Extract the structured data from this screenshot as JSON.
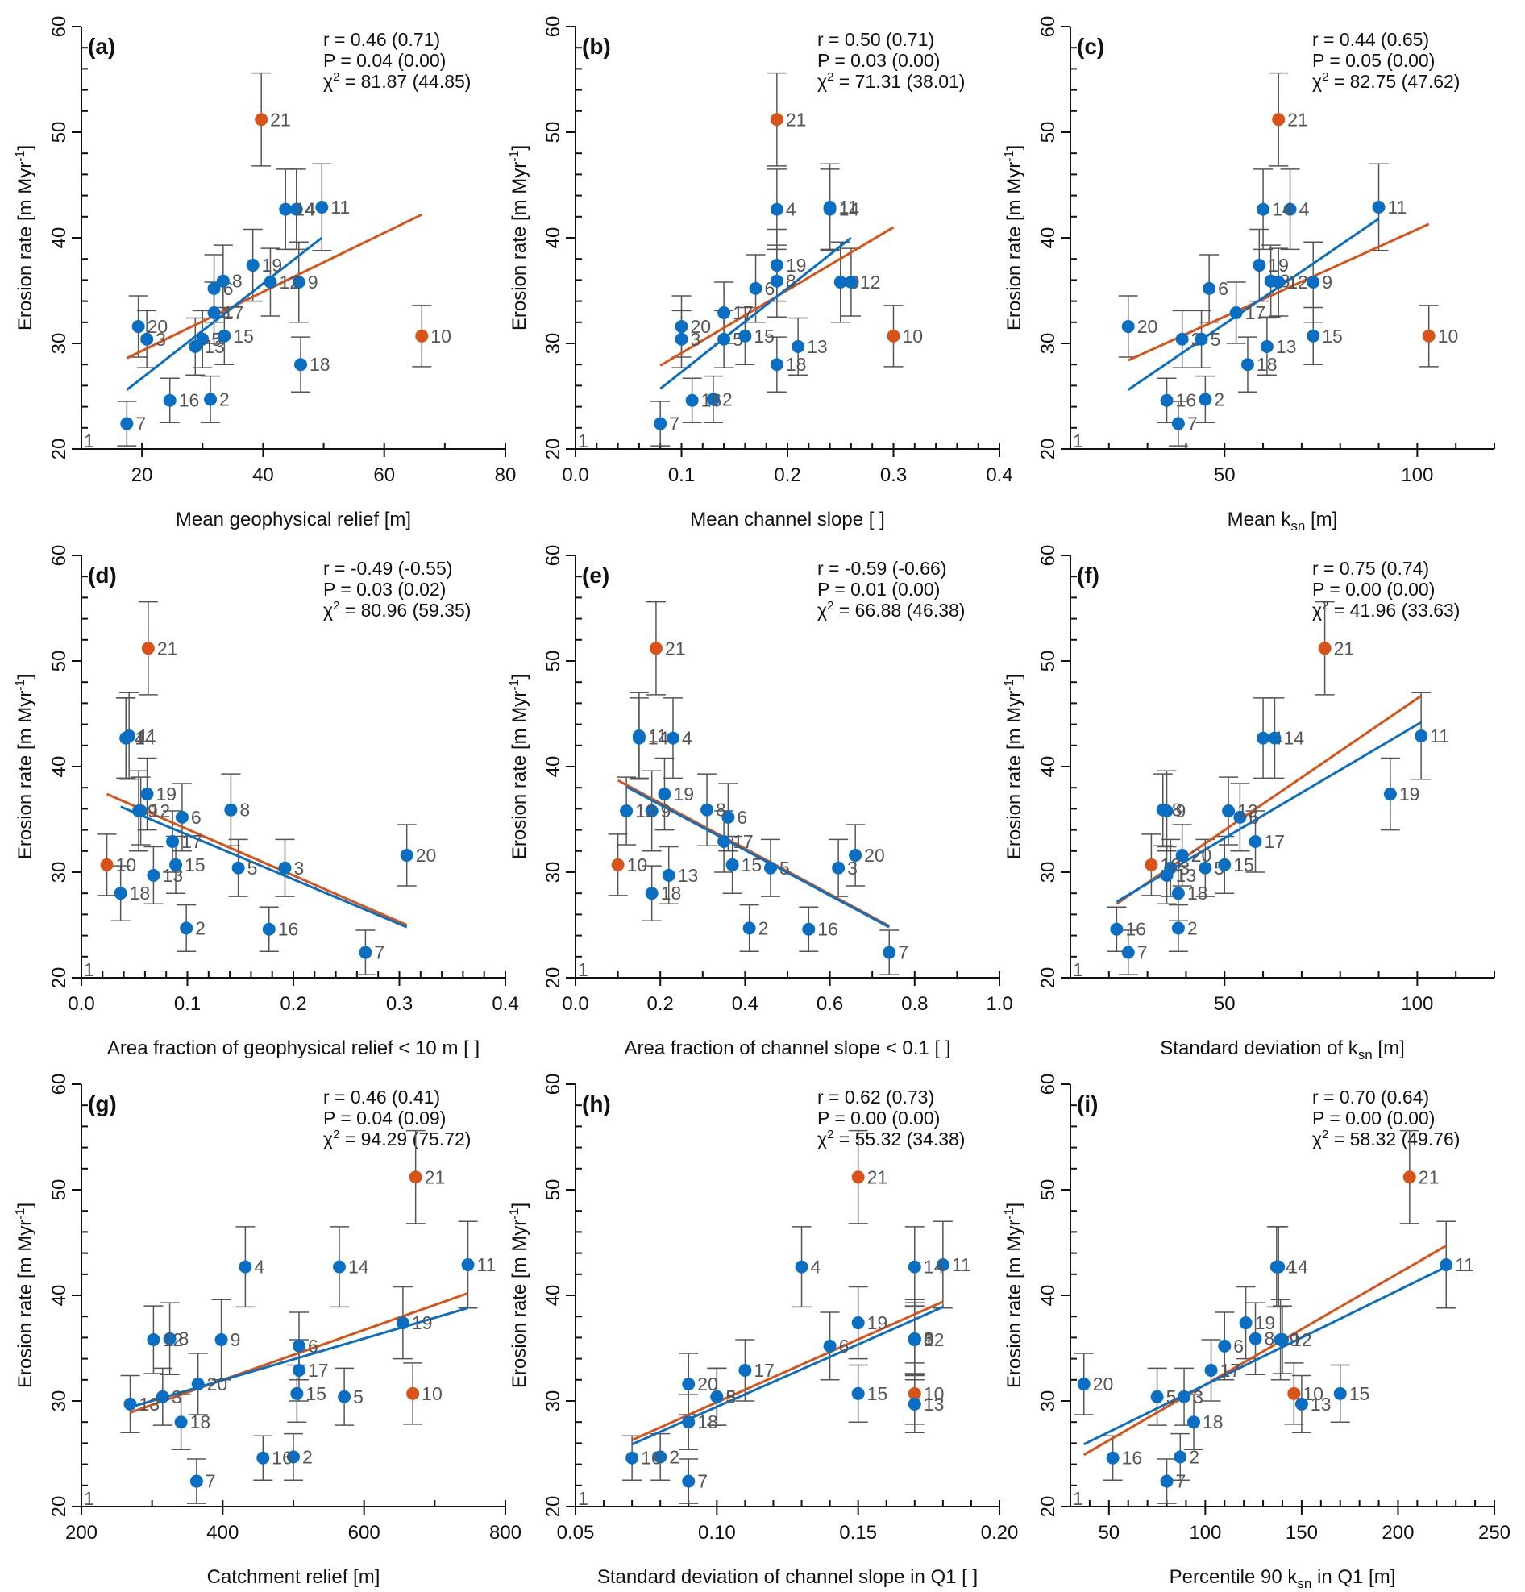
{
  "chart_data": {
    "type": "scatter",
    "ylabel": "Erosion rate [m Myr-1]",
    "ylim": [
      20,
      60
    ],
    "yticks": [
      20,
      30,
      40,
      50,
      60
    ],
    "colors": {
      "points": "#0a6fc2",
      "outliers": "#d95319",
      "fit_all": "#d95319",
      "fit_excl": "#0a6fc2",
      "errorbar": "#555555",
      "axis": "#111111"
    },
    "samples": {
      "ids": [
        "2",
        "3",
        "4",
        "5",
        "6",
        "7",
        "8",
        "9",
        "10",
        "11",
        "12",
        "13",
        "14",
        "15",
        "16",
        "17",
        "18",
        "19",
        "20",
        "21"
      ],
      "erosion_rate": [
        24.7,
        30.4,
        42.7,
        30.4,
        35.2,
        22.4,
        35.9,
        35.8,
        30.7,
        42.9,
        35.8,
        29.7,
        42.7,
        30.7,
        24.6,
        32.9,
        28.0,
        37.4,
        31.6,
        51.2
      ],
      "error": [
        2.2,
        2.7,
        3.8,
        2.7,
        3.2,
        2.1,
        3.4,
        3.8,
        2.9,
        4.1,
        3.2,
        2.7,
        3.8,
        2.7,
        2.1,
        2.9,
        2.6,
        3.4,
        2.9,
        4.4
      ],
      "outlier": [
        false,
        false,
        false,
        false,
        false,
        false,
        false,
        false,
        true,
        false,
        false,
        false,
        false,
        false,
        false,
        false,
        false,
        false,
        false,
        true
      ]
    },
    "offchart_marker": "1",
    "panels": [
      {
        "id": "a",
        "label": "(a)",
        "xlabel": "Mean geophysical relief [m]",
        "xlabel_sub": "",
        "xlim": [
          10,
          80
        ],
        "xticks": [
          20,
          40,
          60,
          80
        ],
        "xtick_labels": [
          "20",
          "40",
          "60",
          "80"
        ],
        "xminor": 10,
        "stats": {
          "r": "r = 0.46 (0.71)",
          "p": "P = 0.04 (0.00)",
          "chi2_prefix": "χ",
          "chi2_value": " = 81.87 (44.85)"
        },
        "x": [
          31.3,
          20.8,
          45.5,
          30.0,
          31.9,
          17.5,
          33.4,
          45.9,
          66.2,
          49.7,
          41.2,
          28.8,
          43.7,
          33.6,
          24.6,
          31.9,
          46.2,
          38.3,
          19.4,
          39.7
        ],
        "fit_excl": [
          [
            17.5,
            25.6
          ],
          [
            49.7,
            40.0
          ]
        ],
        "fit_all": [
          [
            17.5,
            28.6
          ],
          [
            66.2,
            42.2
          ]
        ]
      },
      {
        "id": "b",
        "label": "(b)",
        "xlabel": "Mean channel slope [ ]",
        "xlabel_sub": "",
        "xlim": [
          0,
          0.4
        ],
        "xticks": [
          0,
          0.1,
          0.2,
          0.3,
          0.4
        ],
        "xtick_labels": [
          "0.0",
          "0.1",
          "0.2",
          "0.3",
          "0.4"
        ],
        "xminor": 0.02,
        "stats": {
          "r": "r = 0.50 (0.71)",
          "p": "P = 0.03 (0.00)",
          "chi2_prefix": "χ",
          "chi2_value": " = 71.31 (38.01)"
        },
        "x": [
          0.13,
          0.1,
          0.19,
          0.14,
          0.17,
          0.08,
          0.19,
          0.25,
          0.3,
          0.24,
          0.26,
          0.21,
          0.24,
          0.16,
          0.11,
          0.14,
          0.19,
          0.19,
          0.1,
          0.19
        ],
        "fit_excl": [
          [
            0.08,
            25.7
          ],
          [
            0.26,
            40.0
          ]
        ],
        "fit_all": [
          [
            0.08,
            27.9
          ],
          [
            0.3,
            41.0
          ]
        ]
      },
      {
        "id": "c",
        "label": "(c)",
        "xlabel": "Mean k",
        "xlabel_sub": "sn",
        "xlabel_suffix": " [m]",
        "xlim": [
          10,
          120
        ],
        "xticks": [
          50,
          100
        ],
        "xtick_labels": [
          "50",
          "100"
        ],
        "xminor": 10,
        "stats": {
          "r": "r = 0.44 (0.65)",
          "p": "P = 0.05 (0.00)",
          "chi2_prefix": "χ",
          "chi2_value": " = 82.75 (47.62)"
        },
        "x": [
          45,
          39,
          67,
          44,
          46,
          38,
          62,
          73,
          103,
          90,
          64,
          61,
          60,
          73,
          35,
          53,
          56,
          59,
          25,
          64
        ],
        "fit_excl": [
          [
            25,
            25.6
          ],
          [
            90,
            41.8
          ]
        ],
        "fit_all": [
          [
            25,
            28.4
          ],
          [
            103,
            41.3
          ]
        ]
      },
      {
        "id": "d",
        "label": "(d)",
        "xlabel": "Area fraction of geophysical relief < 10 m [ ]",
        "xlabel_sub": "",
        "xlim": [
          0,
          0.4
        ],
        "xticks": [
          0,
          0.1,
          0.2,
          0.3,
          0.4
        ],
        "xtick_labels": [
          "0.0",
          "0.1",
          "0.2",
          "0.3",
          "0.4"
        ],
        "xminor": 0.02,
        "stats": {
          "r": "r = -0.49 (-0.55)",
          "p": "P = 0.03 (0.02)",
          "chi2_prefix": "χ",
          "chi2_value": " = 80.96 (59.35)"
        },
        "x": [
          0.099,
          0.192,
          0.042,
          0.148,
          0.095,
          0.268,
          0.141,
          0.054,
          0.024,
          0.045,
          0.056,
          0.068,
          0.042,
          0.089,
          0.177,
          0.086,
          0.037,
          0.062,
          0.307,
          0.063
        ],
        "fit_excl": [
          [
            0.037,
            36.2
          ],
          [
            0.307,
            24.8
          ]
        ],
        "fit_all": [
          [
            0.024,
            37.4
          ],
          [
            0.307,
            25.0
          ]
        ]
      },
      {
        "id": "e",
        "label": "(e)",
        "xlabel": "Area fraction of channel slope < 0.1 [ ]",
        "xlabel_sub": "",
        "xlim": [
          0,
          1.0
        ],
        "xticks": [
          0,
          0.2,
          0.4,
          0.6,
          0.8,
          1.0
        ],
        "xtick_labels": [
          "0.0",
          "0.2",
          "0.4",
          "0.6",
          "0.8",
          "1.0"
        ],
        "xminor": 0.1,
        "stats": {
          "r": "r = -0.59 (-0.66)",
          "p": "P = 0.01 (0.00)",
          "chi2_prefix": "χ",
          "chi2_value": " = 66.88 (46.38)"
        },
        "x": [
          0.41,
          0.62,
          0.23,
          0.46,
          0.36,
          0.74,
          0.31,
          0.18,
          0.1,
          0.15,
          0.12,
          0.22,
          0.15,
          0.37,
          0.55,
          0.35,
          0.18,
          0.21,
          0.66,
          0.19
        ],
        "fit_excl": [
          [
            0.12,
            38.1
          ],
          [
            0.74,
            24.8
          ]
        ],
        "fit_all": [
          [
            0.1,
            38.7
          ],
          [
            0.74,
            24.9
          ]
        ]
      },
      {
        "id": "f",
        "label": "(f)",
        "xlabel": "Standard deviation of k",
        "xlabel_sub": "sn",
        "xlabel_suffix": " [m]",
        "xlim": [
          10,
          120
        ],
        "xticks": [
          50,
          100
        ],
        "xtick_labels": [
          "50",
          "100"
        ],
        "xminor": 10,
        "stats": {
          "r": "r = 0.75 (0.74)",
          "p": "P = 0.00 (0.00)",
          "chi2_prefix": "χ",
          "chi2_value": " = 41.96 (33.63)"
        },
        "x": [
          38,
          36,
          60,
          45,
          54,
          25,
          34,
          35,
          31,
          101,
          51,
          35,
          63,
          50,
          22,
          58,
          38,
          93,
          39,
          76
        ],
        "fit_excl": [
          [
            22,
            27.2
          ],
          [
            101,
            44.2
          ]
        ],
        "fit_all": [
          [
            22,
            27.0
          ],
          [
            101,
            46.7
          ]
        ]
      },
      {
        "id": "g",
        "label": "(g)",
        "xlabel": "Catchment relief [m]",
        "xlabel_sub": "",
        "xlim": [
          200,
          800
        ],
        "xticks": [
          200,
          400,
          600,
          800
        ],
        "xtick_labels": [
          "200",
          "400",
          "600",
          "800"
        ],
        "xminor": 100,
        "stats": {
          "r": "r = 0.46 (0.41)",
          "p": "P = 0.04 (0.09)",
          "chi2_prefix": "χ",
          "chi2_value": " = 94.29 (75.72)"
        },
        "x": [
          500,
          315,
          432,
          572,
          508,
          363,
          325,
          398,
          669,
          747,
          302,
          269,
          565,
          505,
          457,
          508,
          341,
          655,
          365,
          673
        ],
        "fit_excl": [
          [
            269,
            29.4
          ],
          [
            747,
            38.8
          ]
        ],
        "fit_all": [
          [
            269,
            28.9
          ],
          [
            747,
            40.2
          ]
        ]
      },
      {
        "id": "h",
        "label": "(h)",
        "xlabel": "Standard deviation of channel slope in Q1 [ ]",
        "xlabel_sub": "",
        "xlim": [
          0.05,
          0.2
        ],
        "xticks": [
          0.05,
          0.1,
          0.15,
          0.2
        ],
        "xtick_labels": [
          "0.05",
          "0.10",
          "0.15",
          "0.20"
        ],
        "xminor": 0.01,
        "stats": {
          "r": "r = 0.62 (0.73)",
          "p": "P = 0.00 (0.00)",
          "chi2_prefix": "χ",
          "chi2_value": " = 55.32 (34.38)"
        },
        "x": [
          0.08,
          0.1,
          0.13,
          0.1,
          0.14,
          0.09,
          0.17,
          0.17,
          0.17,
          0.18,
          0.17,
          0.17,
          0.17,
          0.15,
          0.07,
          0.11,
          0.09,
          0.15,
          0.09,
          0.15
        ],
        "fit_excl": [
          [
            0.07,
            25.9
          ],
          [
            0.18,
            38.9
          ]
        ],
        "fit_all": [
          [
            0.07,
            26.3
          ],
          [
            0.18,
            39.4
          ]
        ]
      },
      {
        "id": "i",
        "label": "(i)",
        "xlabel": "Percentile 90 k",
        "xlabel_sub": "sn",
        "xlabel_suffix": " in Q1 [m]",
        "xlim": [
          30,
          250
        ],
        "xticks": [
          50,
          100,
          150,
          200,
          250
        ],
        "xtick_labels": [
          "50",
          "100",
          "150",
          "200",
          "250"
        ],
        "xminor": 10,
        "stats": {
          "r": "r = 0.70 (0.64)",
          "p": "P = 0.00 (0.00)",
          "chi2_prefix": "χ",
          "chi2_value": " = 58.32 (49.76)"
        },
        "x": [
          87,
          89,
          137,
          75,
          110,
          80,
          126,
          139,
          146,
          225,
          140,
          150,
          138,
          170,
          52,
          103,
          94,
          121,
          37,
          206
        ],
        "fit_excl": [
          [
            37,
            25.9
          ],
          [
            225,
            42.7
          ]
        ],
        "fit_all": [
          [
            37,
            24.9
          ],
          [
            225,
            44.7
          ]
        ]
      }
    ]
  }
}
